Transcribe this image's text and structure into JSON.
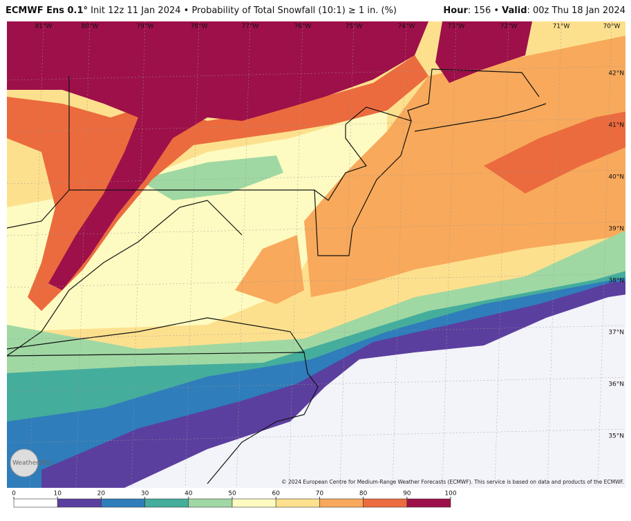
{
  "header": {
    "model": "ECMWF Ens 0.1°",
    "description": "Init 12z 11 Jan 2024 • Probability of Total Snowfall (10:1) ≥ 1 in. (%)",
    "hour_label": "Hour",
    "hour_value": ": 156 • ",
    "valid_label": "Valid",
    "valid_value": ": 00z Thu 18 Jan 2024"
  },
  "map": {
    "longitudes": [
      "81°W",
      "80°W",
      "79°W",
      "78°W",
      "77°W",
      "76°W",
      "75°W",
      "74°W",
      "73°W",
      "72°W",
      "71°W",
      "70°W"
    ],
    "latitudes": [
      "42°N",
      "41°N",
      "40°N",
      "39°N",
      "38°N",
      "37°N",
      "36°N",
      "35°N"
    ],
    "logo": "WeatherBELL",
    "copyright": "© 2024 European Centre for Medium-Range Weather Forecasts (ECMWF). This service is based on data and products of the ECMWF."
  },
  "colorbar": {
    "ticks": [
      0,
      10,
      20,
      30,
      40,
      50,
      60,
      70,
      80,
      90,
      100
    ],
    "colors": [
      "#ffffff",
      "#5b3f9e",
      "#2f7dbb",
      "#45ad9c",
      "#a0d8a3",
      "#fdfbc1",
      "#fde08e",
      "#f8a95b",
      "#eb6b3e",
      "#9e1049"
    ]
  }
}
